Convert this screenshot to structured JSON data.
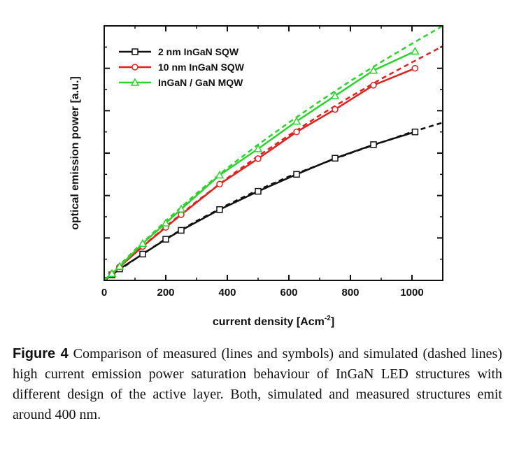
{
  "chart_data": {
    "type": "line",
    "title": "",
    "xlabel": "current density [Acm",
    "xlabel_sup": "-2",
    "xlabel_end": "]",
    "ylabel": "optical emission power [a.u.]",
    "xlim": [
      0,
      1100
    ],
    "ylim": [
      0,
      6
    ],
    "xticks": [
      0,
      200,
      400,
      600,
      800,
      1000
    ],
    "xtick_labels": [
      "0",
      "200",
      "400",
      "600",
      "800",
      "1000"
    ],
    "yticks": [
      0,
      1,
      2,
      3,
      4,
      5,
      6
    ],
    "ytick_labels": [],
    "grid": false,
    "legend_position": "top-left",
    "series": [
      {
        "name": "2 nm InGaN SQW",
        "kind": "measured",
        "color": "#111111",
        "marker": "square",
        "x": [
          0,
          25,
          50,
          125,
          200,
          250,
          375,
          500,
          625,
          750,
          875,
          1010
        ],
        "y": [
          0.0,
          0.13,
          0.27,
          0.62,
          0.97,
          1.18,
          1.67,
          2.1,
          2.5,
          2.88,
          3.2,
          3.5
        ]
      },
      {
        "name": "10 nm InGaN SQW",
        "kind": "measured",
        "color": "#e0211d",
        "marker": "circle",
        "x": [
          0,
          25,
          50,
          125,
          200,
          250,
          375,
          500,
          625,
          750,
          875,
          1010
        ],
        "y": [
          0.0,
          0.15,
          0.32,
          0.8,
          1.25,
          1.55,
          2.27,
          2.87,
          3.5,
          4.03,
          4.6,
          5.0
        ]
      },
      {
        "name": "InGaN / GaN MQW",
        "kind": "measured",
        "color": "#2ad42a",
        "marker": "triangle",
        "x": [
          0,
          25,
          50,
          125,
          200,
          250,
          375,
          500,
          625,
          750,
          875,
          1010
        ],
        "y": [
          0.0,
          0.16,
          0.33,
          0.87,
          1.35,
          1.68,
          2.48,
          3.1,
          3.75,
          4.35,
          4.95,
          5.4
        ]
      },
      {
        "kind": "simulated",
        "color": "#111111",
        "dashed": true,
        "x": [
          0,
          100,
          200,
          300,
          400,
          500,
          600,
          700,
          800,
          900,
          1000,
          1100
        ],
        "y": [
          0.0,
          0.5,
          0.98,
          1.4,
          1.78,
          2.13,
          2.45,
          2.73,
          3.0,
          3.25,
          3.5,
          3.72
        ]
      },
      {
        "kind": "simulated",
        "color": "#e0211d",
        "dashed": true,
        "x": [
          0,
          100,
          200,
          300,
          400,
          500,
          600,
          700,
          800,
          900,
          1000,
          1100
        ],
        "y": [
          0.0,
          0.65,
          1.27,
          1.86,
          2.41,
          2.93,
          3.42,
          3.89,
          4.33,
          4.75,
          5.14,
          5.52
        ]
      },
      {
        "kind": "simulated",
        "color": "#2ad42a",
        "dashed": true,
        "x": [
          0,
          100,
          200,
          300,
          400,
          500,
          600,
          700,
          800,
          900,
          1000,
          1100
        ],
        "y": [
          0.0,
          0.72,
          1.4,
          2.05,
          2.65,
          3.2,
          3.72,
          4.22,
          4.7,
          5.15,
          5.58,
          6.0
        ]
      }
    ]
  },
  "caption": {
    "label": "Figure 4",
    "text": " Comparison of measured (lines and symbols) and simulated (dashed lines) high current emission power saturation behaviour of InGaN LED structures with different design of the active layer. Both, simulated and measured structures emit around 400 nm."
  }
}
